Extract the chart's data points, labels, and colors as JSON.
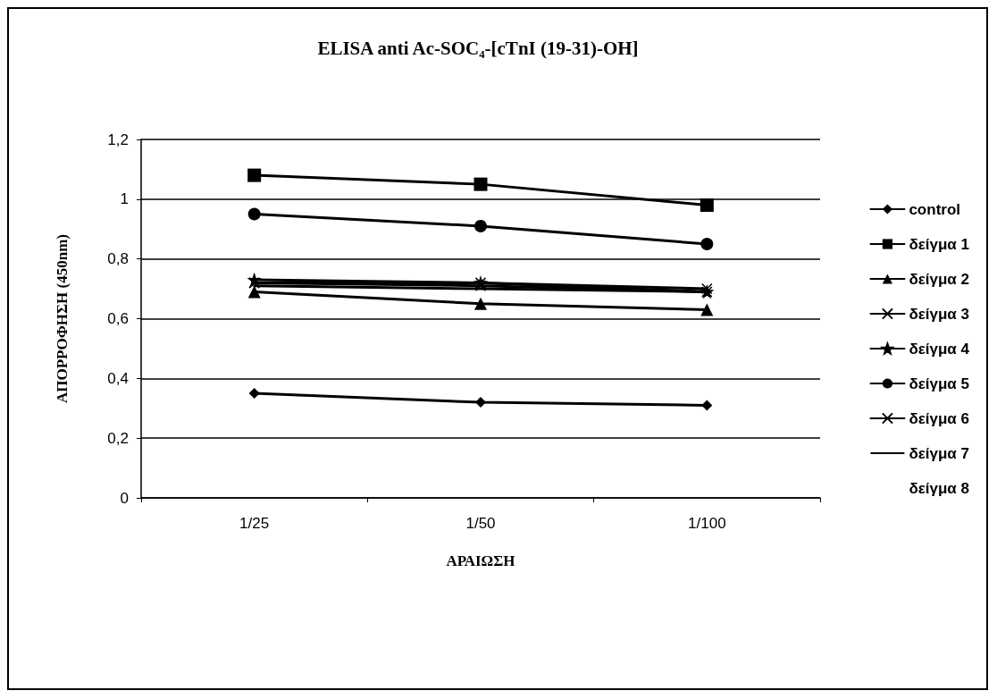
{
  "chart_data": {
    "type": "line",
    "title": "ELISA anti Ac-SOC₄-[cTnI (19-31)-OH]",
    "xlabel": "ΑΡΑΙΩΣΗ",
    "ylabel": "ΑΠΟΡΡΟΦΗΣΗ (450nm)",
    "categories": [
      "1/25",
      "1/50",
      "1/100"
    ],
    "ylim": [
      0,
      1.2
    ],
    "yticks": [
      0,
      {
        "value": 0.2,
        "label": "0,2"
      },
      {
        "value": 0.4,
        "label": "0,4"
      },
      {
        "value": 0.6,
        "label": "0,6"
      },
      {
        "value": 0.8,
        "label": "0,8"
      },
      1,
      {
        "value": 1.2,
        "label": "1,2"
      }
    ],
    "grid": "y",
    "legend": "right",
    "series": [
      {
        "name": "control",
        "color": "#000000",
        "marker": "diamond",
        "values": [
          0.35,
          0.32,
          0.31
        ]
      },
      {
        "name": "δείγμα 1",
        "color": "#000000",
        "marker": "square",
        "values": [
          1.08,
          1.05,
          0.98
        ]
      },
      {
        "name": "δείγμα 2",
        "color": "#000000",
        "marker": "triangle",
        "values": [
          0.69,
          0.65,
          0.63
        ]
      },
      {
        "name": "δείγμα 3",
        "color": "#000000",
        "marker": "cross",
        "values": [
          0.72,
          0.72,
          0.7
        ]
      },
      {
        "name": "δείγμα 4",
        "color": "#000000",
        "marker": "star",
        "values": [
          0.73,
          0.72,
          0.69
        ]
      },
      {
        "name": "δείγμα 5",
        "color": "#000000",
        "marker": "circle",
        "values": [
          0.95,
          0.91,
          0.85
        ]
      },
      {
        "name": "δείγμα 6",
        "color": "#000000",
        "marker": "cross",
        "values": [
          0.72,
          0.71,
          0.69
        ]
      },
      {
        "name": "δείγμα 7",
        "color": "#000000",
        "marker": "none",
        "values": [
          0.71,
          0.7,
          0.69
        ]
      },
      {
        "name": "δείγμα 8",
        "marker": "none",
        "values": [
          null,
          null,
          null
        ]
      }
    ]
  }
}
